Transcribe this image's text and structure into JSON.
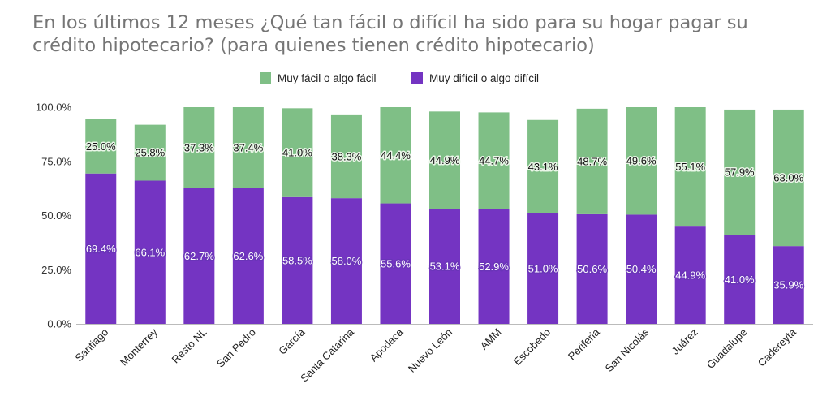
{
  "chart_data": {
    "type": "bar",
    "stacked": true,
    "title": "En los últimos 12 meses ¿Qué tan fácil o difícil ha sido para su hogar pagar su crédito hipotecario? (para quienes tienen crédito hipotecario)",
    "categories": [
      "Santiago",
      "Monterrey",
      "Resto NL",
      "San Pedro",
      "García",
      "Santa Catarina",
      "Apodaca",
      "Nuevo León",
      "AMM",
      "Escobedo",
      "Periferia",
      "San Nicolás",
      "Juárez",
      "Guadalupe",
      "Cadereyta"
    ],
    "series": [
      {
        "name": "Muy difícil o algo difícil",
        "color": "#7434c2",
        "values": [
          69.4,
          66.1,
          62.7,
          62.6,
          58.5,
          58.0,
          55.6,
          53.1,
          52.9,
          51.0,
          50.6,
          50.4,
          44.9,
          41.0,
          35.9
        ],
        "labels": [
          "69.4%",
          "66.1%",
          "62.7%",
          "62.6%",
          "58.5%",
          "58.0%",
          "55.6%",
          "53.1%",
          "52.9%",
          "51.0%",
          "50.6%",
          "50.4%",
          "44.9%",
          "41.0%",
          "35.9%"
        ]
      },
      {
        "name": "Muy fácil o algo fácil",
        "color": "#7fbf86",
        "values": [
          25.0,
          25.8,
          37.3,
          37.4,
          41.0,
          38.3,
          44.4,
          44.9,
          44.7,
          43.1,
          48.7,
          49.6,
          55.1,
          57.9,
          63.0
        ],
        "labels": [
          "25.0%",
          "25.8%",
          "37.3%",
          "37.4%",
          "41.0%",
          "38.3%",
          "44.4%",
          "44.9%",
          "44.7%",
          "43.1%",
          "48.7%",
          "49.6%",
          "55.1%",
          "57.9%",
          "63.0%"
        ]
      }
    ],
    "legend": [
      {
        "name": "Muy fácil o algo fácil",
        "color": "#7fbf86"
      },
      {
        "name": "Muy difícil o algo difícil",
        "color": "#7434c2"
      }
    ],
    "ylim": [
      0,
      100
    ],
    "yticks": [
      0,
      25,
      50,
      75,
      100
    ],
    "ytick_labels": [
      "0.0%",
      "25.0%",
      "50.0%",
      "75.0%",
      "100.0%"
    ],
    "xlabel": "",
    "ylabel": "",
    "legend_position": "top-center",
    "grid": false
  }
}
